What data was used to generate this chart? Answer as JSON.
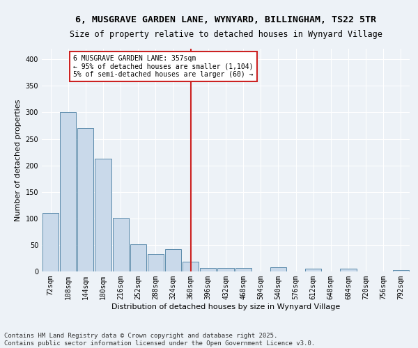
{
  "title1": "6, MUSGRAVE GARDEN LANE, WYNYARD, BILLINGHAM, TS22 5TR",
  "title2": "Size of property relative to detached houses in Wynyard Village",
  "xlabel": "Distribution of detached houses by size in Wynyard Village",
  "ylabel": "Number of detached properties",
  "footer1": "Contains HM Land Registry data © Crown copyright and database right 2025.",
  "footer2": "Contains public sector information licensed under the Open Government Licence v3.0.",
  "bin_labels": [
    "72sqm",
    "108sqm",
    "144sqm",
    "180sqm",
    "216sqm",
    "252sqm",
    "288sqm",
    "324sqm",
    "360sqm",
    "396sqm",
    "432sqm",
    "468sqm",
    "504sqm",
    "540sqm",
    "576sqm",
    "612sqm",
    "648sqm",
    "684sqm",
    "720sqm",
    "756sqm",
    "792sqm"
  ],
  "bar_heights": [
    110,
    300,
    270,
    213,
    101,
    51,
    33,
    42,
    19,
    7,
    7,
    7,
    0,
    8,
    0,
    5,
    0,
    5,
    0,
    0,
    3
  ],
  "bar_color": "#c9d9ea",
  "bar_edge_color": "#5a8aaa",
  "vline_x": 8,
  "vline_color": "#cc2222",
  "annotation_text": "6 MUSGRAVE GARDEN LANE: 357sqm\n← 95% of detached houses are smaller (1,104)\n5% of semi-detached houses are larger (60) →",
  "annotation_box_color": "#cc2222",
  "ylim": [
    0,
    420
  ],
  "yticks": [
    0,
    50,
    100,
    150,
    200,
    250,
    300,
    350,
    400
  ],
  "background_color": "#edf2f7",
  "grid_color": "#ffffff",
  "title_fontsize": 9.5,
  "subtitle_fontsize": 8.5,
  "axis_label_fontsize": 8,
  "tick_fontsize": 7,
  "annotation_fontsize": 7,
  "footer_fontsize": 6.5
}
